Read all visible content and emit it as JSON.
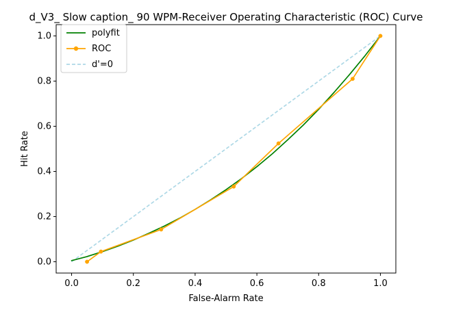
{
  "chart_data": {
    "type": "line",
    "title": "d_V3_ Slow caption_ 90 WPM-Receiver Operating Characteristic (ROC) Curve",
    "xlabel": "False-Alarm Rate",
    "ylabel": "Hit Rate",
    "xlim": [
      -0.05,
      1.05
    ],
    "ylim": [
      -0.05,
      1.05
    ],
    "xticks": [
      0.0,
      0.2,
      0.4,
      0.6,
      0.8,
      1.0
    ],
    "xtick_labels": [
      "0.0",
      "0.2",
      "0.4",
      "0.6",
      "0.8",
      "1.0"
    ],
    "yticks": [
      0.0,
      0.2,
      0.4,
      0.6,
      0.8,
      1.0
    ],
    "ytick_labels": [
      "0.0",
      "0.2",
      "0.4",
      "0.6",
      "0.8",
      "1.0"
    ],
    "grid": false,
    "legend_position": "upper-left",
    "series": [
      {
        "name": "polyfit",
        "style": "solid",
        "marker": "none",
        "color": "#008000",
        "x": [
          0.0,
          0.05,
          0.1,
          0.15,
          0.2,
          0.25,
          0.3,
          0.35,
          0.4,
          0.45,
          0.5,
          0.55,
          0.6,
          0.65,
          0.7,
          0.75,
          0.8,
          0.85,
          0.9,
          0.95,
          1.0
        ],
        "y": [
          0.005,
          0.023,
          0.045,
          0.069,
          0.096,
          0.126,
          0.158,
          0.193,
          0.232,
          0.274,
          0.319,
          0.368,
          0.421,
          0.478,
          0.54,
          0.605,
          0.675,
          0.75,
          0.829,
          0.912,
          1.0
        ]
      },
      {
        "name": "ROC",
        "style": "solid",
        "marker": "circle",
        "color": "#ffa500",
        "x": [
          0.05,
          0.095,
          0.29,
          0.525,
          0.67,
          0.91,
          1.0
        ],
        "y": [
          0.0,
          0.045,
          0.143,
          0.333,
          0.524,
          0.81,
          1.0
        ]
      },
      {
        "name": "d'=0",
        "style": "dashed",
        "marker": "none",
        "color": "#add8e6",
        "x": [
          0.0,
          1.0
        ],
        "y": [
          0.0,
          1.0
        ]
      }
    ]
  }
}
